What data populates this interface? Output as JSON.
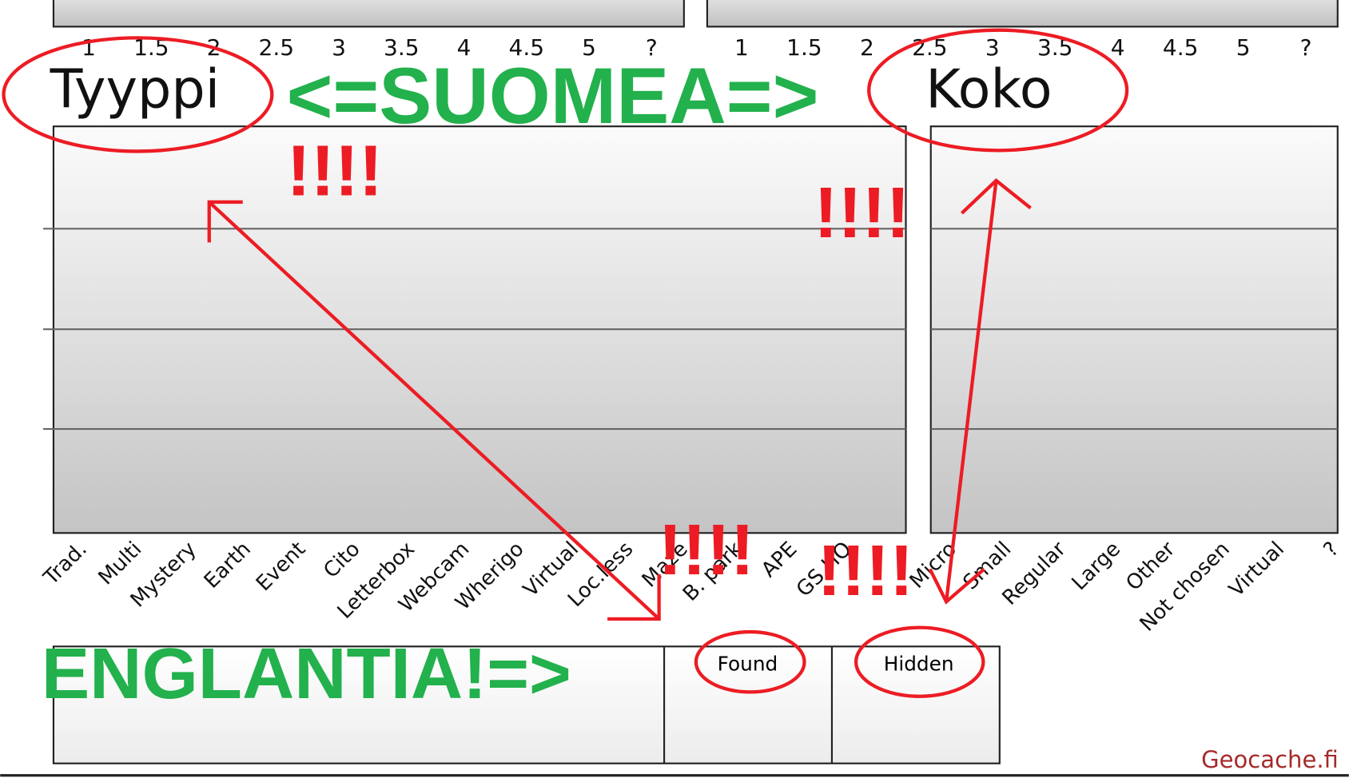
{
  "top_axis_left": [
    "1",
    "1.5",
    "2",
    "2.5",
    "3",
    "3.5",
    "4",
    "4.5",
    "5",
    "?"
  ],
  "top_axis_right": [
    "1",
    "1.5",
    "2",
    "2.5",
    "3",
    "3.5",
    "4",
    "4.5",
    "5",
    "?"
  ],
  "type_chart": {
    "title": "Tyyppi",
    "categories": [
      "Trad.",
      "Multi",
      "Mystery",
      "Earth",
      "Event",
      "Cito",
      "Letterbox",
      "Webcam",
      "Wherigo",
      "Virtual",
      "Loc.less",
      "Maze",
      "B. park",
      "APE",
      "GS HQ"
    ]
  },
  "size_chart": {
    "title": "Koko",
    "categories": [
      "Micro",
      "Small",
      "Regular",
      "Large",
      "Other",
      "Not chosen",
      "Virtual",
      "?"
    ]
  },
  "legend": {
    "found": "Found",
    "hidden": "Hidden"
  },
  "footer": "Geocache.fi",
  "annotations": {
    "finnish": "<=SUOMEA=>",
    "english": "ENGLANTIA!=>",
    "exclaim": [
      "!!!!",
      "!!!!",
      "!!!!",
      "!!!!"
    ]
  }
}
